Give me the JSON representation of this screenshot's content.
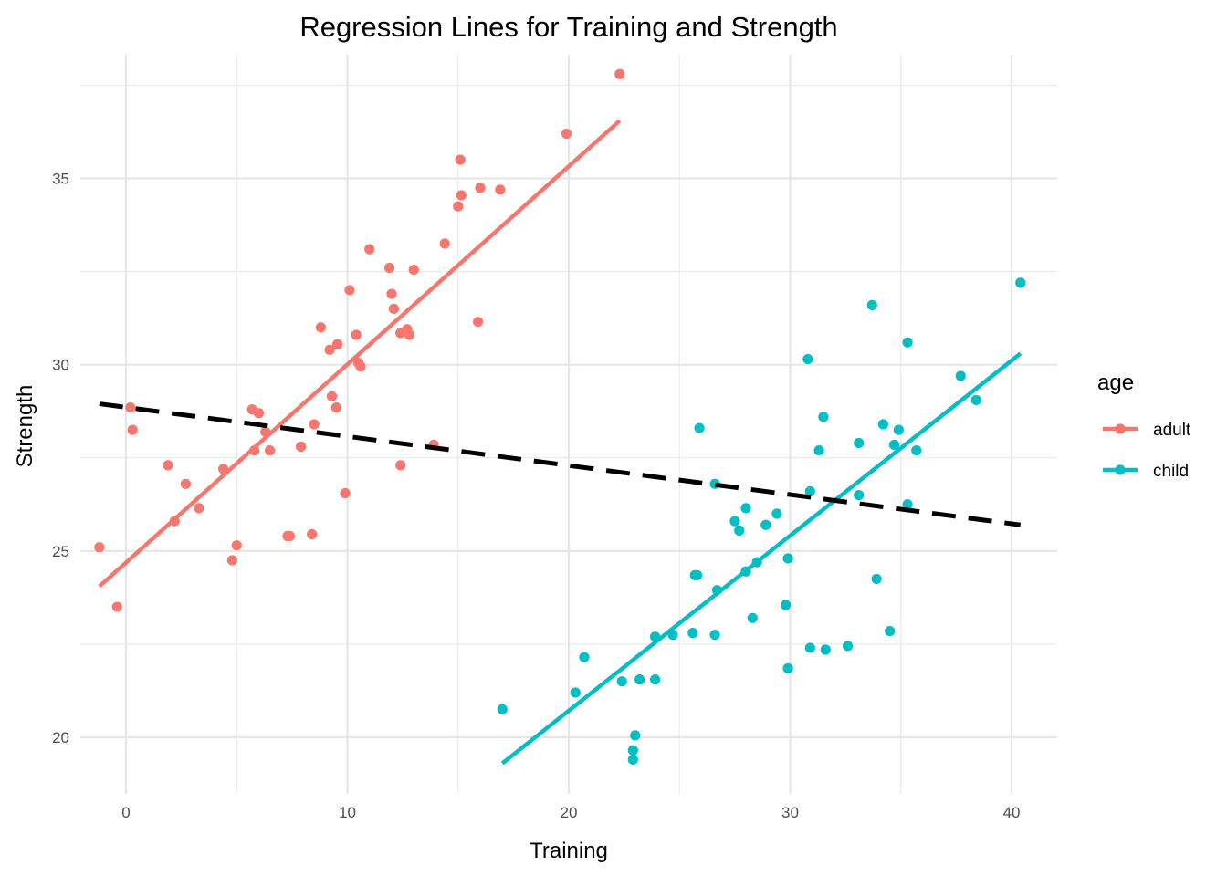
{
  "chart_data": {
    "type": "scatter",
    "title": "Regression Lines for Training and Strength",
    "xlabel": "Training",
    "ylabel": "Strength",
    "xlim": [
      -2.06,
      42.06
    ],
    "ylim": [
      18.48,
      38.32
    ],
    "x_ticks": [
      0,
      10,
      20,
      30,
      40
    ],
    "x_tick_labels": [
      "0",
      "10",
      "20",
      "30",
      "40"
    ],
    "y_ticks": [
      20,
      25,
      30,
      35
    ],
    "y_tick_labels": [
      "20",
      "25",
      "30",
      "35"
    ],
    "grid": true,
    "legend": {
      "title": "age",
      "position": "right"
    },
    "series": [
      {
        "name": "adult",
        "color": "#F8766D",
        "points": [
          [
            -1.2,
            25.1
          ],
          [
            -0.4,
            23.5
          ],
          [
            0.2,
            28.85
          ],
          [
            0.3,
            28.25
          ],
          [
            1.9,
            27.3
          ],
          [
            2.2,
            25.8
          ],
          [
            2.7,
            26.8
          ],
          [
            3.3,
            26.15
          ],
          [
            4.4,
            27.2
          ],
          [
            4.8,
            24.75
          ],
          [
            5.0,
            25.15
          ],
          [
            5.7,
            28.8
          ],
          [
            5.8,
            27.7
          ],
          [
            6.0,
            28.7
          ],
          [
            6.3,
            28.2
          ],
          [
            6.5,
            27.7
          ],
          [
            7.3,
            25.4
          ],
          [
            7.4,
            25.4
          ],
          [
            7.9,
            27.8
          ],
          [
            8.4,
            25.45
          ],
          [
            8.5,
            28.4
          ],
          [
            8.8,
            31.0
          ],
          [
            9.2,
            30.4
          ],
          [
            9.3,
            29.15
          ],
          [
            9.5,
            28.85
          ],
          [
            9.55,
            30.55
          ],
          [
            9.9,
            26.55
          ],
          [
            10.1,
            32.0
          ],
          [
            10.4,
            30.8
          ],
          [
            10.5,
            30.05
          ],
          [
            10.6,
            29.95
          ],
          [
            11.0,
            33.1
          ],
          [
            11.9,
            32.6
          ],
          [
            12.0,
            31.9
          ],
          [
            12.1,
            31.5
          ],
          [
            12.4,
            30.85
          ],
          [
            12.4,
            27.3
          ],
          [
            12.7,
            30.95
          ],
          [
            12.8,
            30.8
          ],
          [
            13.0,
            32.55
          ],
          [
            13.9,
            27.85
          ],
          [
            14.4,
            33.25
          ],
          [
            15.0,
            34.25
          ],
          [
            15.1,
            35.5
          ],
          [
            15.15,
            34.55
          ],
          [
            15.9,
            31.15
          ],
          [
            16.0,
            34.75
          ],
          [
            16.9,
            34.7
          ],
          [
            19.9,
            36.2
          ],
          [
            22.3,
            37.8
          ]
        ],
        "fit": {
          "x": [
            -1.2,
            22.3
          ],
          "y": [
            24.05,
            36.55
          ]
        }
      },
      {
        "name": "child",
        "color": "#00BFC4",
        "points": [
          [
            17.0,
            20.75
          ],
          [
            20.3,
            21.2
          ],
          [
            20.7,
            22.15
          ],
          [
            22.4,
            21.5
          ],
          [
            22.9,
            19.4
          ],
          [
            22.9,
            19.65
          ],
          [
            23.0,
            20.05
          ],
          [
            23.2,
            21.55
          ],
          [
            23.9,
            22.7
          ],
          [
            23.9,
            21.55
          ],
          [
            24.7,
            22.75
          ],
          [
            25.6,
            22.8
          ],
          [
            25.7,
            24.35
          ],
          [
            25.8,
            24.35
          ],
          [
            25.9,
            28.3
          ],
          [
            26.6,
            26.8
          ],
          [
            26.6,
            22.75
          ],
          [
            26.7,
            23.95
          ],
          [
            27.5,
            25.8
          ],
          [
            27.7,
            25.55
          ],
          [
            28.0,
            26.15
          ],
          [
            28.0,
            24.45
          ],
          [
            28.3,
            23.2
          ],
          [
            28.5,
            24.7
          ],
          [
            28.9,
            25.7
          ],
          [
            29.4,
            26.0
          ],
          [
            29.8,
            23.55
          ],
          [
            29.9,
            24.8
          ],
          [
            29.9,
            21.85
          ],
          [
            30.8,
            30.15
          ],
          [
            30.9,
            26.6
          ],
          [
            30.9,
            22.4
          ],
          [
            31.3,
            27.7
          ],
          [
            31.5,
            28.6
          ],
          [
            31.6,
            22.35
          ],
          [
            32.6,
            22.45
          ],
          [
            33.1,
            27.9
          ],
          [
            33.1,
            26.5
          ],
          [
            33.7,
            31.6
          ],
          [
            33.9,
            24.25
          ],
          [
            34.2,
            28.4
          ],
          [
            34.5,
            22.85
          ],
          [
            34.7,
            27.85
          ],
          [
            34.9,
            28.25
          ],
          [
            35.3,
            30.6
          ],
          [
            35.3,
            26.25
          ],
          [
            35.7,
            27.7
          ],
          [
            37.7,
            29.7
          ],
          [
            38.4,
            29.05
          ],
          [
            40.4,
            32.2
          ]
        ],
        "fit": {
          "x": [
            17.0,
            40.4
          ],
          "y": [
            19.3,
            30.3
          ]
        }
      }
    ],
    "overall_fit": {
      "name": "overall",
      "style": "dashed",
      "color": "#000000",
      "x": [
        -1.2,
        40.4
      ],
      "y": [
        28.95,
        25.7
      ]
    }
  }
}
